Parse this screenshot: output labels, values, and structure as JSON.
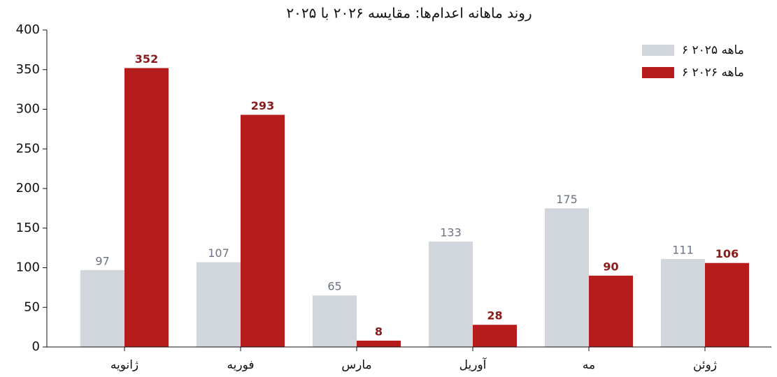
{
  "chart_data": {
    "type": "bar",
    "title": "روند ماهانه اعدام‌ها: مقایسه ۲۰۲۶ با ۲۰۲۵",
    "categories": [
      "ژانویه",
      "فوریه",
      "مارس",
      "آوریل",
      "مه",
      "ژوئن"
    ],
    "series": [
      {
        "name": "۶ ماهه ۲۰۲۵",
        "color": "#d1d5dc",
        "values": [
          97,
          107,
          65,
          133,
          175,
          111
        ]
      },
      {
        "name": "۶ ماهه ۲۰۲۶",
        "color": "#b71c1c",
        "values": [
          352,
          293,
          8,
          28,
          90,
          106
        ]
      }
    ],
    "ylim": [
      0,
      400
    ],
    "yticks": [
      0,
      50,
      100,
      150,
      200,
      250,
      300,
      350,
      400
    ],
    "legend": "upper right"
  }
}
